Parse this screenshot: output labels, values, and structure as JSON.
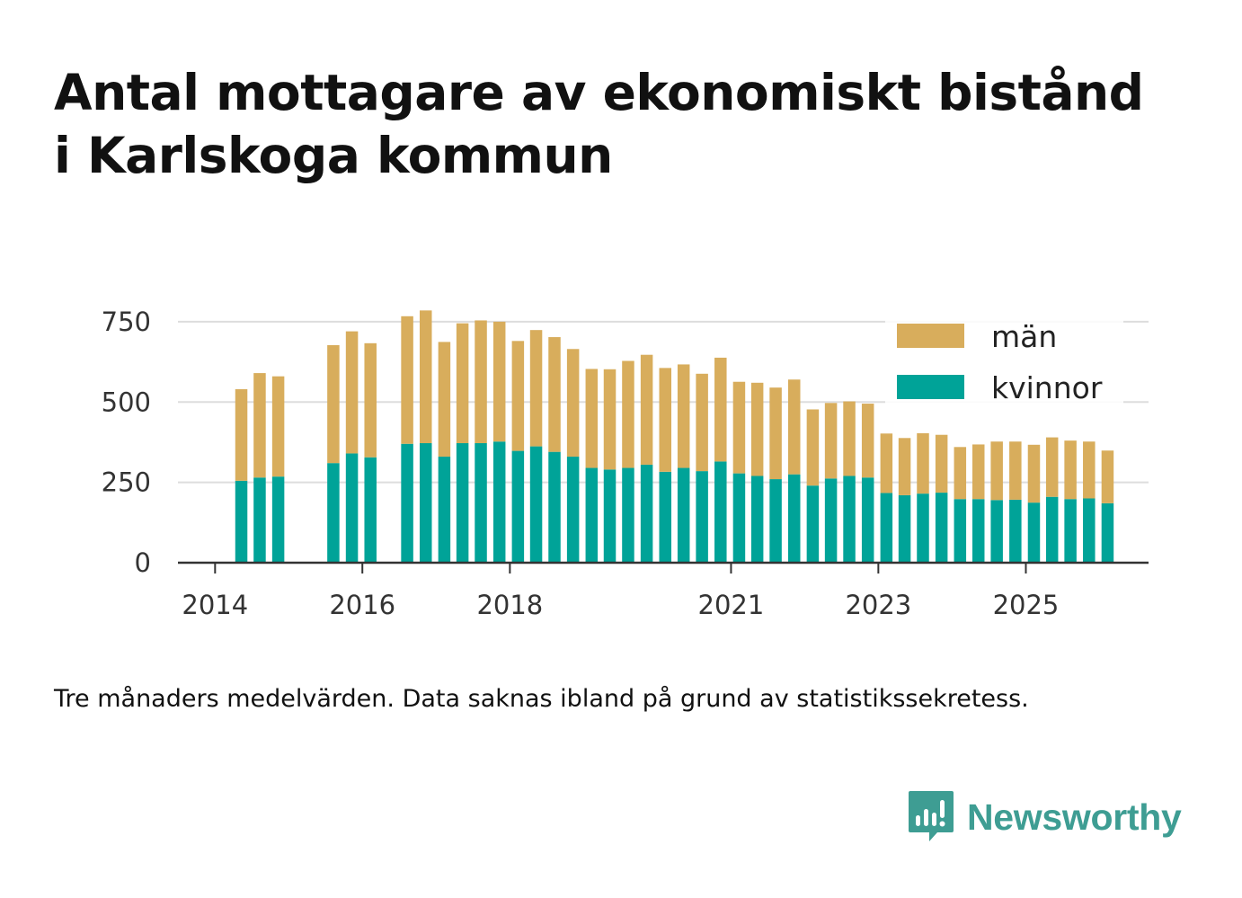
{
  "title_lines": [
    "Antal mottagare av ekonomiskt bistånd",
    "i Karlskoga kommun"
  ],
  "note": "Tre månaders medelvärden. Data saknas ibland på grund av statistikssekretess.",
  "brand": {
    "name": "Newsworthy",
    "icon": "bar-chart-speech-bubble-icon",
    "color": "#3e9d93"
  },
  "chart_data": {
    "type": "bar",
    "stacked": true,
    "grid": true,
    "legend_position": "top-right",
    "ylim": [
      0,
      800
    ],
    "yticks": [
      0,
      250,
      500,
      750
    ],
    "xlim": [
      "2013-07-01",
      "2026-09-01"
    ],
    "xticks": [
      {
        "label": "2014",
        "date": "2014-01-01"
      },
      {
        "label": "2016",
        "date": "2016-01-01"
      },
      {
        "label": "2018",
        "date": "2018-01-01"
      },
      {
        "label": "2021",
        "date": "2021-01-01"
      },
      {
        "label": "2023",
        "date": "2023-01-01"
      },
      {
        "label": "2025",
        "date": "2025-01-01"
      }
    ],
    "x": [
      "2014-04",
      "2014-07",
      "2014-10",
      "2015-07",
      "2015-10",
      "2016-01",
      "2016-07",
      "2016-10",
      "2017-01",
      "2017-04",
      "2017-07",
      "2017-10",
      "2018-01",
      "2018-04",
      "2018-07",
      "2018-10",
      "2019-01",
      "2019-04",
      "2019-07",
      "2019-10",
      "2020-01",
      "2020-04",
      "2020-07",
      "2020-10",
      "2021-01",
      "2021-04",
      "2021-07",
      "2021-10",
      "2022-01",
      "2022-04",
      "2022-07",
      "2022-10",
      "2023-01",
      "2023-04",
      "2023-07",
      "2023-10",
      "2024-01",
      "2024-04",
      "2024-07",
      "2024-10",
      "2025-01",
      "2025-04",
      "2025-07",
      "2025-10",
      "2026-01"
    ],
    "series": [
      {
        "name": "kvinnor",
        "color": "#00a398",
        "values": [
          255,
          265,
          268,
          310,
          340,
          328,
          370,
          372,
          330,
          372,
          372,
          377,
          348,
          362,
          345,
          330,
          295,
          290,
          295,
          305,
          283,
          295,
          285,
          315,
          278,
          270,
          260,
          275,
          240,
          262,
          270,
          265,
          217,
          210,
          215,
          218,
          198,
          198,
          195,
          196,
          187,
          205,
          198,
          200,
          185
        ]
      },
      {
        "name": "män",
        "color": "#d8ad5c",
        "values": [
          285,
          325,
          312,
          367,
          380,
          355,
          397,
          413,
          357,
          373,
          382,
          373,
          342,
          362,
          357,
          335,
          308,
          312,
          333,
          342,
          323,
          322,
          303,
          323,
          285,
          290,
          285,
          295,
          237,
          235,
          232,
          230,
          185,
          178,
          188,
          180,
          162,
          170,
          182,
          181,
          180,
          185,
          182,
          177,
          164
        ]
      }
    ]
  }
}
